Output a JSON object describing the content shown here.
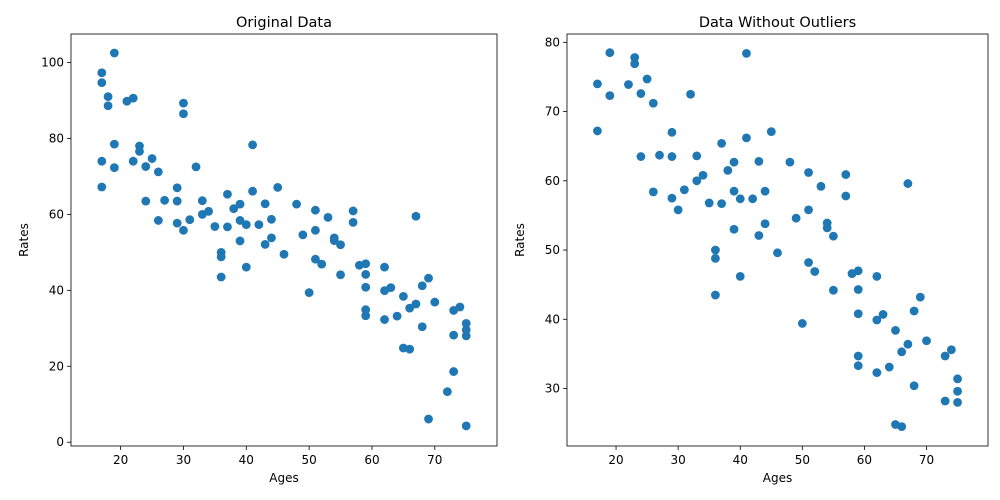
{
  "chart_data": [
    {
      "type": "scatter",
      "title": "Original Data",
      "xlabel": "Ages",
      "ylabel": "Rates",
      "xlim": [
        12.1,
        79.9
      ],
      "ylim": [
        -1.0,
        107.5
      ],
      "xticks": [
        20,
        30,
        40,
        50,
        60,
        70
      ],
      "yticks": [
        0,
        20,
        40,
        60,
        80,
        100
      ],
      "grid": false,
      "color": "#1f77b4",
      "x": [
        17,
        17,
        17,
        17,
        18,
        18,
        19,
        19,
        19,
        21,
        22,
        22,
        23,
        23,
        24,
        24,
        25,
        26,
        26,
        27,
        29,
        29,
        29,
        30,
        30,
        30,
        31,
        32,
        33,
        33,
        34,
        35,
        36,
        36,
        36,
        37,
        37,
        38,
        39,
        39,
        39,
        40,
        40,
        41,
        41,
        42,
        43,
        43,
        44,
        44,
        45,
        46,
        48,
        49,
        50,
        51,
        51,
        51,
        52,
        53,
        54,
        54,
        55,
        55,
        57,
        57,
        58,
        59,
        59,
        59,
        59,
        59,
        62,
        62,
        62,
        63,
        64,
        65,
        65,
        66,
        66,
        67,
        67,
        68,
        68,
        69,
        69,
        70,
        72,
        73,
        73,
        73,
        74,
        75,
        75,
        75,
        75
      ],
      "y": [
        97.3,
        94.7,
        74.0,
        67.2,
        91.0,
        88.6,
        102.5,
        78.5,
        72.3,
        89.8,
        90.6,
        74.0,
        78.0,
        76.6,
        72.6,
        63.5,
        74.7,
        71.2,
        58.4,
        63.7,
        67.0,
        63.5,
        57.7,
        89.3,
        86.5,
        55.8,
        58.6,
        72.5,
        63.6,
        60.0,
        60.8,
        56.8,
        50.0,
        48.8,
        43.5,
        65.3,
        56.7,
        61.5,
        62.7,
        58.4,
        53.0,
        57.3,
        46.1,
        78.3,
        66.1,
        57.3,
        62.8,
        52.1,
        58.7,
        53.8,
        67.1,
        49.5,
        62.7,
        54.6,
        39.4,
        61.1,
        55.8,
        48.2,
        46.9,
        59.2,
        53.8,
        53.1,
        52.0,
        44.1,
        60.9,
        57.9,
        46.6,
        47.0,
        44.2,
        40.8,
        34.9,
        33.3,
        46.1,
        39.9,
        32.3,
        40.7,
        33.2,
        38.4,
        24.8,
        35.3,
        24.5,
        59.5,
        36.4,
        41.2,
        30.4,
        43.2,
        6.1,
        36.9,
        13.3,
        34.7,
        28.2,
        18.6,
        35.6,
        31.3,
        29.6,
        28.0,
        4.3
      ]
    },
    {
      "type": "scatter",
      "title": "Data Without Outliers",
      "xlabel": "Ages",
      "ylabel": "Rates",
      "xlim": [
        12.1,
        79.9
      ],
      "ylim": [
        21.7,
        81.2
      ],
      "xticks": [
        20,
        30,
        40,
        50,
        60,
        70
      ],
      "yticks": [
        30,
        40,
        50,
        60,
        70,
        80
      ],
      "grid": false,
      "color": "#1f77b4",
      "x": [
        17,
        17,
        19,
        19,
        22,
        23,
        23,
        24,
        24,
        25,
        26,
        26,
        27,
        29,
        29,
        29,
        30,
        31,
        32,
        33,
        33,
        34,
        35,
        36,
        36,
        36,
        37,
        37,
        38,
        39,
        39,
        39,
        40,
        40,
        41,
        41,
        42,
        43,
        43,
        44,
        44,
        45,
        46,
        48,
        49,
        50,
        51,
        51,
        51,
        52,
        53,
        54,
        54,
        55,
        55,
        57,
        57,
        58,
        59,
        59,
        59,
        59,
        59,
        62,
        62,
        62,
        63,
        64,
        65,
        65,
        66,
        66,
        67,
        67,
        68,
        68,
        69,
        70,
        73,
        73,
        74,
        75,
        75,
        75
      ],
      "y": [
        74.0,
        67.2,
        78.5,
        72.3,
        73.9,
        77.8,
        76.9,
        72.6,
        63.5,
        74.7,
        71.2,
        58.4,
        63.7,
        67.0,
        63.5,
        57.5,
        55.8,
        58.7,
        72.5,
        63.6,
        60.0,
        60.8,
        56.8,
        50.0,
        48.8,
        43.5,
        65.4,
        56.7,
        61.5,
        62.7,
        58.5,
        53.0,
        57.4,
        46.2,
        78.4,
        66.2,
        57.4,
        62.8,
        52.1,
        58.5,
        53.8,
        67.1,
        49.6,
        62.7,
        54.6,
        39.4,
        61.2,
        55.8,
        48.2,
        46.9,
        59.2,
        53.9,
        53.2,
        52.0,
        44.2,
        60.9,
        57.8,
        46.6,
        47.0,
        44.3,
        40.8,
        34.7,
        33.3,
        46.2,
        39.9,
        32.3,
        40.7,
        33.1,
        38.4,
        24.8,
        35.3,
        24.5,
        59.6,
        36.4,
        41.2,
        30.4,
        43.2,
        36.9,
        34.7,
        28.2,
        35.6,
        31.4,
        29.6,
        28.0
      ]
    }
  ]
}
